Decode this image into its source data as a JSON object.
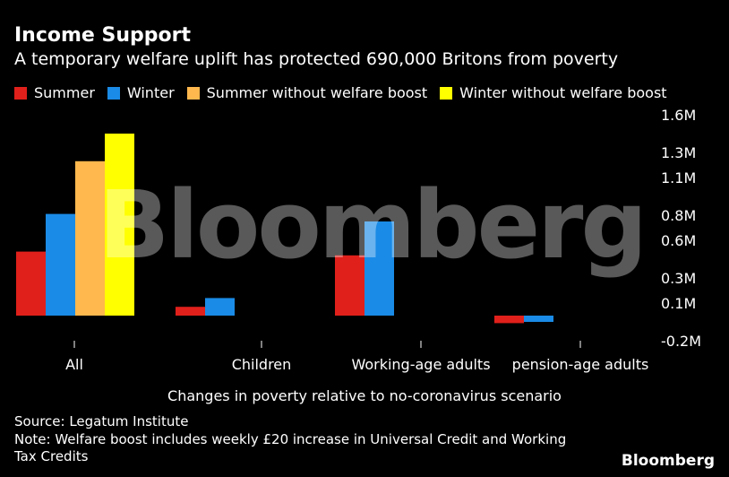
{
  "title": "Income Support",
  "subtitle": "A temporary welfare uplift has protected 690,000 Britons from poverty",
  "legend": [
    {
      "label": "Summer",
      "color": "#e0201b"
    },
    {
      "label": "Winter",
      "color": "#1a8be6"
    },
    {
      "label": "Summer without welfare boost",
      "color": "#ffb84d"
    },
    {
      "label": "Winter without welfare boost",
      "color": "#ffff00"
    }
  ],
  "chart_data": {
    "type": "bar",
    "categories": [
      "All",
      "Children",
      "Working-age adults",
      "pension-age adults"
    ],
    "series": [
      {
        "name": "Summer",
        "color": "#e0201b",
        "values": [
          0.51,
          0.07,
          0.48,
          -0.06
        ]
      },
      {
        "name": "Winter",
        "color": "#1a8be6",
        "values": [
          0.81,
          0.14,
          0.75,
          -0.05
        ]
      },
      {
        "name": "Summer without welfare boost",
        "color": "#ffb84d",
        "values": [
          1.23,
          null,
          null,
          null
        ]
      },
      {
        "name": "Winter without welfare boost",
        "color": "#ffff00",
        "values": [
          1.45,
          null,
          null,
          null
        ]
      }
    ],
    "yticks": [
      1.6,
      1.3,
      1.1,
      0.8,
      0.6,
      0.3,
      0.1,
      -0.2
    ],
    "ytick_labels": [
      "1.6M",
      "1.3M",
      "1.1M",
      "0.8M",
      "0.6M",
      "0.3M",
      "0.1M",
      "-0.2M"
    ],
    "ylim": [
      -0.2,
      1.6
    ],
    "xlabel": "Changes in poverty relative to no-coronavirus scenario",
    "ylabel": ""
  },
  "source": "Source: Legatum Institute",
  "note_line1": "Note: Welfare boost includes weekly £20 increase in Universal Credit and Working",
  "note_line2": "Tax Credits",
  "watermark": "Bloomberg",
  "logo": "Bloomberg"
}
